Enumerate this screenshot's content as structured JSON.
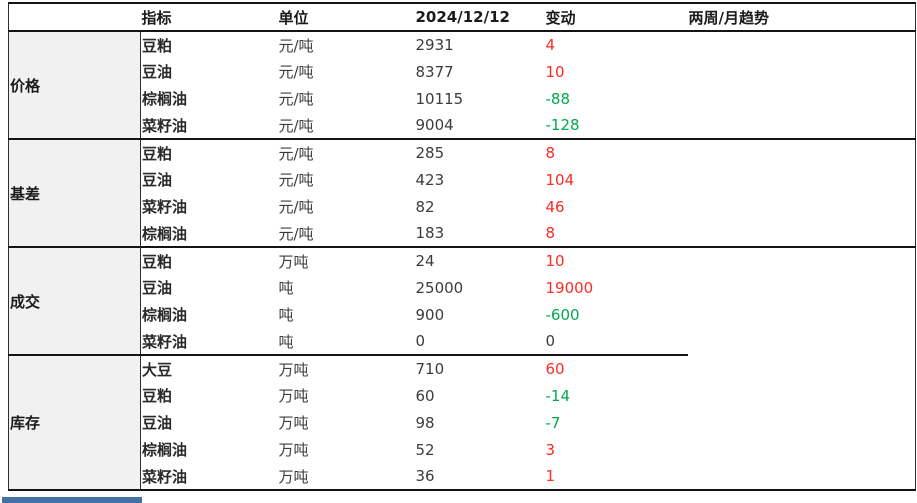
{
  "colors": {
    "change_up": "#fa2c23",
    "change_down": "#00a94f",
    "change_flat": "#3c3c3c",
    "label_column_bg": "#f1f1f1",
    "blue_bar": "#4472a8",
    "border": "#141414"
  },
  "table": {
    "headers": {
      "indicator": "指标",
      "unit": "单位",
      "date": "2024/12/12",
      "change": "变动",
      "trend": "两周/月趋势"
    },
    "groups": [
      {
        "label": "价格",
        "rows": [
          {
            "indicator": "豆粕",
            "unit": "元/吨",
            "value": "2931",
            "change": "4",
            "direction": "up"
          },
          {
            "indicator": "豆油",
            "unit": "元/吨",
            "value": "8377",
            "change": "10",
            "direction": "up"
          },
          {
            "indicator": "棕榈油",
            "unit": "元/吨",
            "value": "10115",
            "change": "-88",
            "direction": "down"
          },
          {
            "indicator": "菜籽油",
            "unit": "元/吨",
            "value": "9004",
            "change": "-128",
            "direction": "down"
          }
        ]
      },
      {
        "label": "基差",
        "rows": [
          {
            "indicator": "豆粕",
            "unit": "元/吨",
            "value": "285",
            "change": "8",
            "direction": "up"
          },
          {
            "indicator": "豆油",
            "unit": "元/吨",
            "value": "423",
            "change": "104",
            "direction": "up"
          },
          {
            "indicator": "菜籽油",
            "unit": "元/吨",
            "value": "82",
            "change": "46",
            "direction": "up"
          },
          {
            "indicator": "棕榈油",
            "unit": "元/吨",
            "value": "183",
            "change": "8",
            "direction": "up"
          }
        ]
      },
      {
        "label": "成交",
        "partial_separator": true,
        "rows": [
          {
            "indicator": "豆粕",
            "unit": "万吨",
            "value": "24",
            "change": "10",
            "direction": "up"
          },
          {
            "indicator": "豆油",
            "unit": "吨",
            "value": "25000",
            "change": "19000",
            "direction": "up"
          },
          {
            "indicator": "棕榈油",
            "unit": "吨",
            "value": "900",
            "change": "-600",
            "direction": "down"
          },
          {
            "indicator": "菜籽油",
            "unit": "吨",
            "value": "0",
            "change": "0",
            "direction": "flat"
          }
        ]
      },
      {
        "label": "库存",
        "rows": [
          {
            "indicator": "大豆",
            "unit": "万吨",
            "value": "710",
            "change": "60",
            "direction": "up"
          },
          {
            "indicator": "豆粕",
            "unit": "万吨",
            "value": "60",
            "change": "-14",
            "direction": "down"
          },
          {
            "indicator": "豆油",
            "unit": "万吨",
            "value": "98",
            "change": "-7",
            "direction": "down"
          },
          {
            "indicator": "棕榈油",
            "unit": "万吨",
            "value": "52",
            "change": "3",
            "direction": "up"
          },
          {
            "indicator": "菜籽油",
            "unit": "万吨",
            "value": "36",
            "change": "1",
            "direction": "up"
          }
        ]
      }
    ]
  }
}
